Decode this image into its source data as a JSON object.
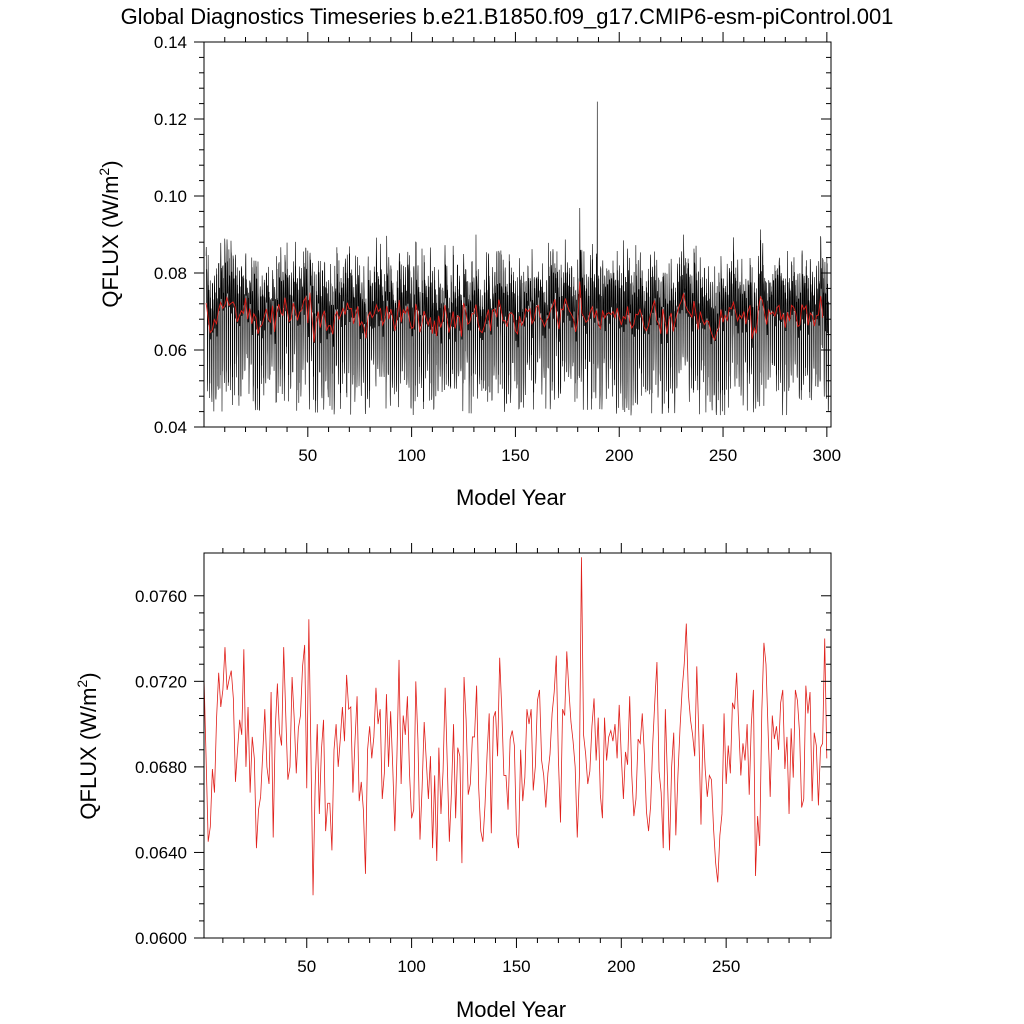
{
  "figure_title": "Global Diagnostics Timeseries b.e21.B1850.f09_g17.CMIP6-esm-piControl.001",
  "colors": {
    "monthly": "#000000",
    "annual": "#e0201b",
    "axis": "#000000"
  },
  "chart_data": [
    {
      "type": "line",
      "ylabel_main": "QFLUX (W/m",
      "ylabel_sup": "2",
      "ylabel_close": ")",
      "xlabel": "Model Year",
      "xlim": [
        0,
        302
      ],
      "ylim": [
        0.04,
        0.14
      ],
      "xticks": [
        50,
        100,
        150,
        200,
        250,
        300
      ],
      "xtick_labels": [
        "50",
        "100",
        "150",
        "200",
        "250",
        "300"
      ],
      "yticks": [
        0.04,
        0.06,
        0.08,
        0.1,
        0.12,
        0.14
      ],
      "ytick_labels": [
        "0.04",
        "0.06",
        "0.08",
        "0.10",
        "0.12",
        "0.14"
      ],
      "series": [
        {
          "name": "monthly",
          "color": "#000000",
          "resolution": "monthly",
          "years": 300,
          "baseline": 0.0685,
          "seasonal_amplitude": 0.014,
          "min": 0.043,
          "max": 0.1245,
          "max_at_year": 189
        },
        {
          "name": "annual",
          "color": "#e0201b",
          "resolution": "annual",
          "source": "chart_data.1.series.0.values"
        }
      ]
    },
    {
      "type": "line",
      "ylabel_main": "QFLUX (W/m",
      "ylabel_sup": "2",
      "ylabel_close": ")",
      "xlabel": "Model Year",
      "xlim": [
        1,
        300
      ],
      "ylim": [
        0.06,
        0.078
      ],
      "xticks": [
        50,
        100,
        150,
        200,
        250
      ],
      "xtick_labels": [
        "50",
        "100",
        "150",
        "200",
        "250"
      ],
      "yticks": [
        0.06,
        0.064,
        0.068,
        0.072,
        0.076
      ],
      "ytick_labels": [
        "0.0600",
        "0.0640",
        "0.0680",
        "0.0720",
        "0.0760"
      ],
      "series": [
        {
          "name": "annual",
          "color": "#e0201b",
          "x_start": 1,
          "values": [
            0.0722,
            0.0684,
            0.0645,
            0.0652,
            0.0679,
            0.0668,
            0.0703,
            0.0724,
            0.0708,
            0.0716,
            0.0736,
            0.0716,
            0.0721,
            0.0725,
            0.0712,
            0.0673,
            0.0688,
            0.0702,
            0.0695,
            0.0735,
            0.068,
            0.0708,
            0.0668,
            0.0694,
            0.0684,
            0.0642,
            0.066,
            0.0666,
            0.0686,
            0.0707,
            0.068,
            0.0672,
            0.0715,
            0.0647,
            0.0698,
            0.0719,
            0.0696,
            0.069,
            0.0736,
            0.0704,
            0.0674,
            0.068,
            0.0722,
            0.0703,
            0.0677,
            0.0698,
            0.0704,
            0.0727,
            0.0737,
            0.067,
            0.0749,
            0.0686,
            0.062,
            0.0671,
            0.07,
            0.0658,
            0.0688,
            0.0702,
            0.065,
            0.0663,
            0.0663,
            0.0641,
            0.0688,
            0.07,
            0.068,
            0.0693,
            0.0708,
            0.0692,
            0.0723,
            0.0707,
            0.0708,
            0.0668,
            0.0692,
            0.0713,
            0.0664,
            0.0673,
            0.066,
            0.063,
            0.0688,
            0.0699,
            0.0684,
            0.0694,
            0.0717,
            0.07,
            0.0707,
            0.0665,
            0.0677,
            0.0714,
            0.068,
            0.0706,
            0.068,
            0.065,
            0.0685,
            0.073,
            0.0672,
            0.0704,
            0.0695,
            0.0713,
            0.0677,
            0.0656,
            0.066,
            0.072,
            0.0693,
            0.0646,
            0.067,
            0.0701,
            0.0683,
            0.0665,
            0.0685,
            0.0642,
            0.0676,
            0.0636,
            0.0689,
            0.0658,
            0.0678,
            0.0717,
            0.0682,
            0.0645,
            0.0668,
            0.07,
            0.0656,
            0.0689,
            0.0685,
            0.0635,
            0.0722,
            0.0702,
            0.0667,
            0.0672,
            0.0694,
            0.0694,
            0.0718,
            0.067,
            0.065,
            0.0645,
            0.0662,
            0.0686,
            0.0705,
            0.0649,
            0.0703,
            0.0706,
            0.0685,
            0.0731,
            0.0707,
            0.0676,
            0.0676,
            0.066,
            0.0693,
            0.0697,
            0.069,
            0.0649,
            0.0642,
            0.0688,
            0.0664,
            0.0675,
            0.0707,
            0.07,
            0.0707,
            0.0669,
            0.068,
            0.0711,
            0.0716,
            0.0683,
            0.0676,
            0.0661,
            0.0677,
            0.0686,
            0.0705,
            0.0715,
            0.0732,
            0.0684,
            0.0654,
            0.0707,
            0.0704,
            0.0734,
            0.0716,
            0.0701,
            0.0692,
            0.068,
            0.0647,
            0.0675,
            0.0778,
            0.0695,
            0.0686,
            0.0672,
            0.0678,
            0.0699,
            0.0712,
            0.0683,
            0.0703,
            0.0667,
            0.0656,
            0.0703,
            0.0683,
            0.0694,
            0.0697,
            0.0692,
            0.07,
            0.0684,
            0.0709,
            0.0685,
            0.0665,
            0.0687,
            0.0681,
            0.0713,
            0.0676,
            0.0657,
            0.0665,
            0.0693,
            0.0691,
            0.0705,
            0.0686,
            0.0659,
            0.065,
            0.0662,
            0.0691,
            0.0711,
            0.0729,
            0.0678,
            0.0668,
            0.0642,
            0.0707,
            0.0675,
            0.0641,
            0.068,
            0.0696,
            0.0648,
            0.0676,
            0.0698,
            0.0716,
            0.0728,
            0.0747,
            0.0714,
            0.0702,
            0.0695,
            0.0685,
            0.0727,
            0.0694,
            0.0653,
            0.07,
            0.0679,
            0.0666,
            0.0676,
            0.0674,
            0.0651,
            0.0635,
            0.0626,
            0.0648,
            0.0658,
            0.0705,
            0.0672,
            0.069,
            0.0677,
            0.071,
            0.0707,
            0.0724,
            0.0699,
            0.0676,
            0.0691,
            0.0683,
            0.07,
            0.0667,
            0.07,
            0.0716,
            0.0629,
            0.0657,
            0.0643,
            0.0706,
            0.0738,
            0.0728,
            0.0697,
            0.0666,
            0.0704,
            0.0693,
            0.0699,
            0.0688,
            0.071,
            0.0716,
            0.0679,
            0.0694,
            0.0658,
            0.0698,
            0.0675,
            0.0716,
            0.0711,
            0.0696,
            0.0661,
            0.0665,
            0.0718,
            0.0705,
            0.0715,
            0.0664,
            0.0696,
            0.069,
            0.0662,
            0.0689,
            0.0691,
            0.074,
            0.0684
          ]
        }
      ]
    }
  ]
}
